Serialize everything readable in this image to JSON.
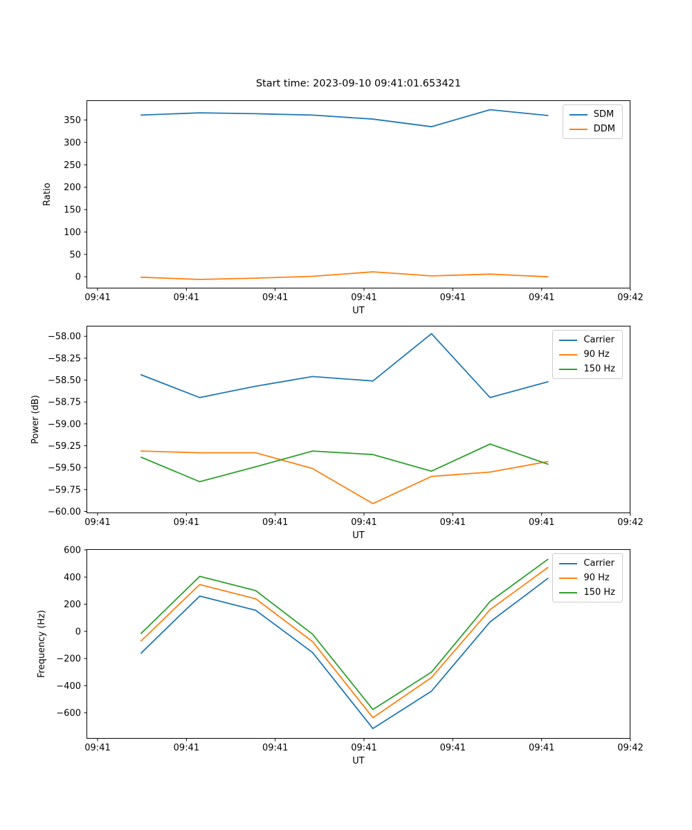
{
  "figure": {
    "title": "Start time: 2023-09-10 09:41:01.653421",
    "background": "#ffffff",
    "text_color": "#000000"
  },
  "chart_data": [
    {
      "type": "line",
      "title": "",
      "xlabel": "UT",
      "ylabel": "Ratio",
      "grid": false,
      "legend_position": "upper right",
      "x_unit": "seconds after 09:41:00 UT",
      "x": [
        4.9,
        11.5,
        17.8,
        24.2,
        31.0,
        37.6,
        44.2,
        50.7
      ],
      "xlim": [
        -1.25,
        60
      ],
      "xticks": [
        0,
        10,
        20,
        30,
        40,
        50,
        60
      ],
      "xticklabels": [
        "09:41",
        "09:41",
        "09:41",
        "09:41",
        "09:41",
        "09:41",
        "09:42"
      ],
      "ylim": [
        -26,
        394
      ],
      "yticks": [
        0,
        50,
        100,
        150,
        200,
        250,
        300,
        350
      ],
      "yticklabels": [
        "0",
        "50",
        "100",
        "150",
        "200",
        "250",
        "300",
        "350"
      ],
      "series": [
        {
          "name": "SDM",
          "color": "#1f77b4",
          "values": [
            361,
            366,
            364,
            361,
            352,
            335,
            373,
            360
          ]
        },
        {
          "name": "DDM",
          "color": "#ff7f0e",
          "values": [
            -1,
            -6,
            -3,
            1,
            11,
            2,
            6,
            0
          ]
        }
      ]
    },
    {
      "type": "line",
      "title": "",
      "xlabel": "UT",
      "ylabel": "Power (dB)",
      "grid": false,
      "legend_position": "upper right",
      "x_unit": "seconds after 09:41:00 UT",
      "x": [
        4.9,
        11.5,
        17.8,
        24.2,
        31.0,
        37.6,
        44.2,
        50.7
      ],
      "xlim": [
        -1.25,
        60
      ],
      "xticks": [
        0,
        10,
        20,
        30,
        40,
        50,
        60
      ],
      "xticklabels": [
        "09:41",
        "09:41",
        "09:41",
        "09:41",
        "09:41",
        "09:41",
        "09:42"
      ],
      "ylim": [
        -60.02,
        -57.88
      ],
      "yticks": [
        -58.0,
        -58.25,
        -58.5,
        -58.75,
        -59.0,
        -59.25,
        -59.5,
        -59.75,
        -60.0
      ],
      "yticklabels": [
        "−58.00",
        "−58.25",
        "−58.50",
        "−58.75",
        "−59.00",
        "−59.25",
        "−59.50",
        "−59.75",
        "−60.00"
      ],
      "series": [
        {
          "name": "Carrier",
          "color": "#1f77b4",
          "values": [
            -58.44,
            -58.7,
            -58.57,
            -58.46,
            -58.51,
            -57.97,
            -58.7,
            -58.52
          ]
        },
        {
          "name": "90 Hz",
          "color": "#ff7f0e",
          "values": [
            -59.31,
            -59.33,
            -59.33,
            -59.51,
            -59.91,
            -59.6,
            -59.55,
            -59.43
          ]
        },
        {
          "name": "150 Hz",
          "color": "#2ca02c",
          "values": [
            -59.38,
            -59.66,
            -59.49,
            -59.31,
            -59.35,
            -59.54,
            -59.23,
            -59.46
          ]
        }
      ]
    },
    {
      "type": "line",
      "title": "",
      "xlabel": "UT",
      "ylabel": "Frequency (Hz)",
      "grid": false,
      "legend_position": "upper right",
      "x_unit": "seconds after 09:41:00 UT",
      "x": [
        4.9,
        11.5,
        17.8,
        24.2,
        31.0,
        37.6,
        44.2,
        50.7
      ],
      "xlim": [
        -1.25,
        60
      ],
      "xticks": [
        0,
        10,
        20,
        30,
        40,
        50,
        60
      ],
      "xticklabels": [
        "09:41",
        "09:41",
        "09:41",
        "09:41",
        "09:41",
        "09:41",
        "09:42"
      ],
      "ylim": [
        -790,
        605
      ],
      "yticks": [
        600,
        400,
        200,
        0,
        -200,
        -400,
        -600
      ],
      "yticklabels": [
        "600",
        "400",
        "200",
        "0",
        "−200",
        "−400",
        "−600"
      ],
      "series": [
        {
          "name": "Carrier",
          "color": "#1f77b4",
          "values": [
            -160,
            260,
            155,
            -155,
            -715,
            -440,
            70,
            390
          ]
        },
        {
          "name": "90 Hz",
          "color": "#ff7f0e",
          "values": [
            -70,
            345,
            240,
            -75,
            -635,
            -340,
            160,
            470
          ]
        },
        {
          "name": "150 Hz",
          "color": "#2ca02c",
          "values": [
            -15,
            405,
            300,
            -20,
            -575,
            -300,
            220,
            530
          ]
        }
      ]
    }
  ]
}
